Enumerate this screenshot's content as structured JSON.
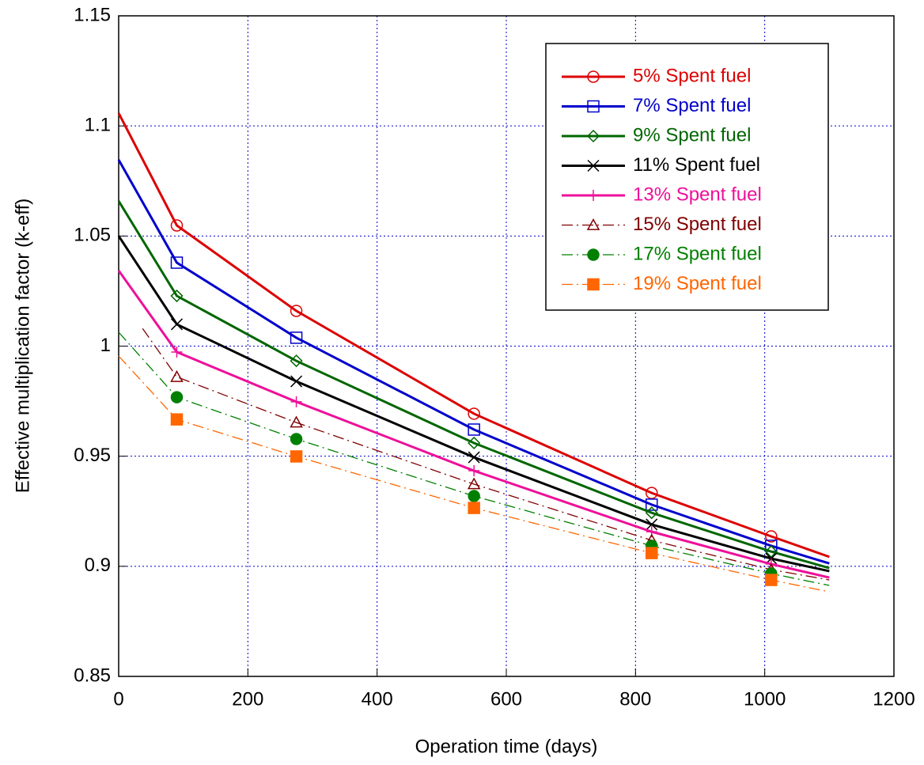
{
  "chart_data": {
    "type": "line",
    "x_label": "Operation time (days)",
    "y_label": "Effective multiplication factor (k-eff)",
    "x": [
      0,
      90,
      275,
      550,
      825,
      1010,
      1100
    ],
    "xlim": [
      0,
      1200
    ],
    "xticks": [
      0,
      200,
      400,
      600,
      800,
      1000,
      1200
    ],
    "ylim": [
      0.85,
      1.15
    ],
    "yticks": [
      0.85,
      0.9,
      0.95,
      1,
      1.05,
      1.1,
      1.15
    ],
    "grid": true,
    "legend": "upper right",
    "series": [
      {
        "name": "5% Spent fuel",
        "color": "#dd0000",
        "marker": "circle",
        "dash": "solid",
        "values": [
          1.1058,
          1.0548,
          1.016,
          0.9693,
          0.9333,
          0.9136,
          0.9043
        ]
      },
      {
        "name": "7% Spent fuel",
        "color": "#0000cc",
        "marker": "square",
        "dash": "solid",
        "values": [
          1.0846,
          1.0379,
          1.0038,
          0.9621,
          0.928,
          0.9093,
          0.9013
        ]
      },
      {
        "name": "9% Spent fuel",
        "color": "#006600",
        "marker": "diamond",
        "dash": "solid",
        "values": [
          1.0659,
          1.0228,
          0.9933,
          0.956,
          0.9243,
          0.9067,
          0.8992
        ]
      },
      {
        "name": "11% Spent fuel",
        "color": "#000000",
        "marker": "x",
        "dash": "solid",
        "values": [
          1.05,
          1.0099,
          0.984,
          0.9495,
          0.919,
          0.9035,
          0.8978
        ]
      },
      {
        "name": "13% Spent fuel",
        "color": "#ee1099",
        "marker": "plus",
        "dash": "solid",
        "values": [
          1.0343,
          0.9973,
          0.9747,
          0.9434,
          0.9157,
          0.901,
          0.8949
        ]
      },
      {
        "name": "15% Spent fuel",
        "color": "#800000",
        "marker": "triangle",
        "dash": "dashed",
        "x": [
          37,
          90,
          275,
          550,
          825,
          1010,
          1100
        ],
        "values": [
          1.008,
          0.986,
          0.9653,
          0.9373,
          0.9118,
          0.8985,
          0.8938
        ]
      },
      {
        "name": "17% Spent fuel",
        "color": "#008000",
        "marker": "filled-circle",
        "dash": "dashed",
        "values": [
          1.0063,
          0.9768,
          0.9578,
          0.9319,
          0.9093,
          0.8967,
          0.8913
        ]
      },
      {
        "name": "19% Spent fuel",
        "color": "#ff6600",
        "marker": "filled-square",
        "dash": "dashed",
        "values": [
          0.9955,
          0.9667,
          0.9499,
          0.9265,
          0.906,
          0.8938,
          0.8884
        ]
      }
    ]
  }
}
